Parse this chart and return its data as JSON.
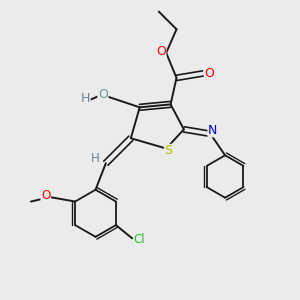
{
  "background_color": "#ebebeb",
  "bond_color": "#1a1a1a",
  "atoms": {
    "S": {
      "color": "#b8b800"
    },
    "O_red": {
      "color": "#ff0000"
    },
    "O_teal": {
      "color": "#5f9ea0"
    },
    "N": {
      "color": "#0000cc"
    },
    "Cl": {
      "color": "#33bb33"
    },
    "H": {
      "color": "#708090"
    },
    "C": {
      "color": "#1a1a1a"
    }
  },
  "figsize": [
    3.0,
    3.0
  ],
  "dpi": 100,
  "xlim": [
    0,
    10
  ],
  "ylim": [
    0,
    10
  ]
}
